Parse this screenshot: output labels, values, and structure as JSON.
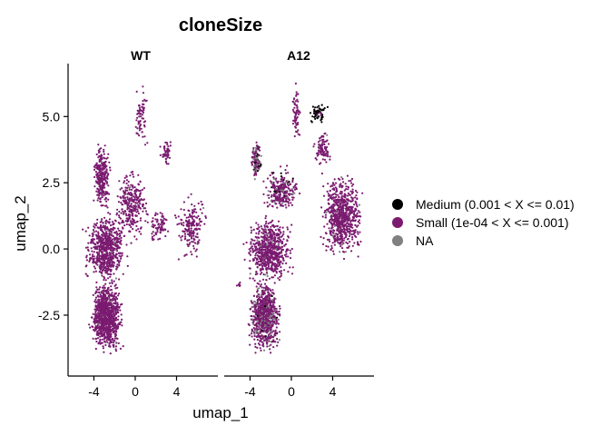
{
  "chart_data": {
    "type": "scatter",
    "title": "cloneSize",
    "xlabel": "umap_1",
    "ylabel": "umap_2",
    "xlim": [
      -6.5,
      8
    ],
    "ylim": [
      -4.8,
      7.0
    ],
    "xticks": [
      "-4",
      "0",
      "4"
    ],
    "yticks": [
      "-2.5",
      "0.0",
      "2.5",
      "5.0"
    ],
    "legend_position": "right",
    "legend": [
      {
        "label": "Medium (0.001 < X <= 0.01)",
        "color": "#000000"
      },
      {
        "label": "Small (1e-04 < X <= 0.001)",
        "color": "#7A1B70"
      },
      {
        "label": "NA",
        "color": "#808080"
      }
    ],
    "panels": [
      {
        "name": "WT",
        "regions": [
          {
            "x": [
              -4.6,
              -1.0
            ],
            "y": [
              -4.1,
              -1.0
            ],
            "n": 900,
            "w": [
              0.0,
              0.99
            ]
          },
          {
            "x": [
              -5.2,
              -0.5
            ],
            "y": [
              -1.5,
              1.5
            ],
            "n": 650,
            "w": [
              0.0,
              0.99
            ]
          },
          {
            "x": [
              -4.2,
              -2.2
            ],
            "y": [
              1.3,
              4.1
            ],
            "n": 280,
            "w": [
              0.0,
              0.99
            ]
          },
          {
            "x": [
              -2.2,
              1.5
            ],
            "y": [
              0.0,
              3.2
            ],
            "n": 280,
            "w": [
              0.0,
              0.99
            ]
          },
          {
            "x": [
              3.6,
              7.2
            ],
            "y": [
              -0.5,
              2.2
            ],
            "n": 180,
            "w": [
              0.0,
              0.99
            ]
          },
          {
            "x": [
              1.0,
              3.5
            ],
            "y": [
              0.2,
              1.6
            ],
            "n": 80,
            "w": [
              0.0,
              0.99
            ]
          },
          {
            "x": [
              2.3,
              3.8
            ],
            "y": [
              3.0,
              4.2
            ],
            "n": 45,
            "w": [
              0.0,
              0.99
            ]
          },
          {
            "x": [
              -0.3,
              1.4
            ],
            "y": [
              3.6,
              6.3
            ],
            "n": 70,
            "w": [
              0.0,
              0.99
            ]
          }
        ]
      },
      {
        "name": "A12",
        "regions": [
          {
            "x": [
              -4.3,
              -0.8
            ],
            "y": [
              -4.1,
              -1.0
            ],
            "n": 850,
            "w": [
              0.02,
              0.85
            ]
          },
          {
            "x": [
              -4.8,
              0.5
            ],
            "y": [
              -1.5,
              1.4
            ],
            "n": 650,
            "w": [
              0.0,
              0.97
            ]
          },
          {
            "x": [
              -4.0,
              -2.8
            ],
            "y": [
              2.5,
              4.2
            ],
            "n": 120,
            "w": [
              0.18,
              0.7
            ]
          },
          {
            "x": [
              -3.0,
              1.0
            ],
            "y": [
              1.2,
              3.2
            ],
            "n": 260,
            "w": [
              0.05,
              0.9
            ]
          },
          {
            "x": [
              2.5,
              7.2
            ],
            "y": [
              -0.5,
              3.0
            ],
            "n": 700,
            "w": [
              0.0,
              0.98
            ]
          },
          {
            "x": [
              2.0,
              4.0
            ],
            "y": [
              3.0,
              4.5
            ],
            "n": 90,
            "w": [
              0.0,
              0.98
            ]
          },
          {
            "x": [
              1.6,
              3.6
            ],
            "y": [
              4.7,
              5.5
            ],
            "n": 60,
            "w": [
              0.85,
              0.95
            ]
          },
          {
            "x": [
              0.0,
              1.0
            ],
            "y": [
              3.8,
              6.4
            ],
            "n": 60,
            "w": [
              0.0,
              0.98
            ]
          },
          {
            "x": [
              -5.3,
              -4.8
            ],
            "y": [
              -1.5,
              -1.2
            ],
            "n": 10,
            "w": [
              0.0,
              0.99
            ]
          }
        ]
      }
    ]
  }
}
